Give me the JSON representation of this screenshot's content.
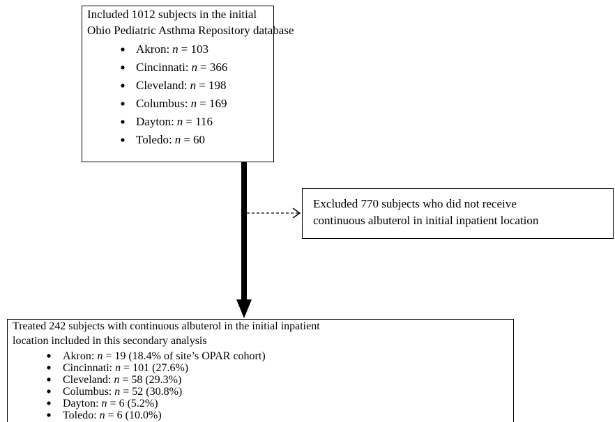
{
  "boxes": [
    {
      "lines": [
        "Included 1012 subjects in the initial",
        "Ohio Pediatric Asthma Repository database"
      ],
      "items": [
        {
          "site": "Akron:",
          "var": "n",
          "value": "= 103"
        },
        {
          "site": "Cincinnati:",
          "var": "n",
          "value": "= 366"
        },
        {
          "site": "Cleveland:",
          "var": "n",
          "value": "= 198"
        },
        {
          "site": "Columbus:",
          "var": "n",
          "value": "= 169"
        },
        {
          "site": "Dayton:",
          "var": "n",
          "value": "= 116"
        },
        {
          "site": "Toledo:",
          "var": "n",
          "value": "= 60"
        }
      ]
    },
    {
      "lines": [
        "Excluded 770 subjects who did not receive",
        "continuous albuterol in initial inpatient location"
      ],
      "items": []
    },
    {
      "lines": [
        "Treated 242 subjects with continuous albuterol in the initial inpatient",
        "location included in this secondary analysis"
      ],
      "items": [
        {
          "site": "Akron:",
          "var": "n",
          "value": "= 19 (18.4% of site’s OPAR cohort)"
        },
        {
          "site": "Cincinnati:",
          "var": "n",
          "value": "= 101 (27.6%)"
        },
        {
          "site": "Cleveland:",
          "var": "n",
          "value": "= 58 (29.3%)"
        },
        {
          "site": "Columbus:",
          "var": "n",
          "value": "= 52 (30.8%)"
        },
        {
          "site": "Dayton:",
          "var": "n",
          "value": "= 6 (5.2%)"
        },
        {
          "site": "Toledo:",
          "var": "n",
          "value": "= 6 (10.0%)"
        }
      ]
    }
  ]
}
